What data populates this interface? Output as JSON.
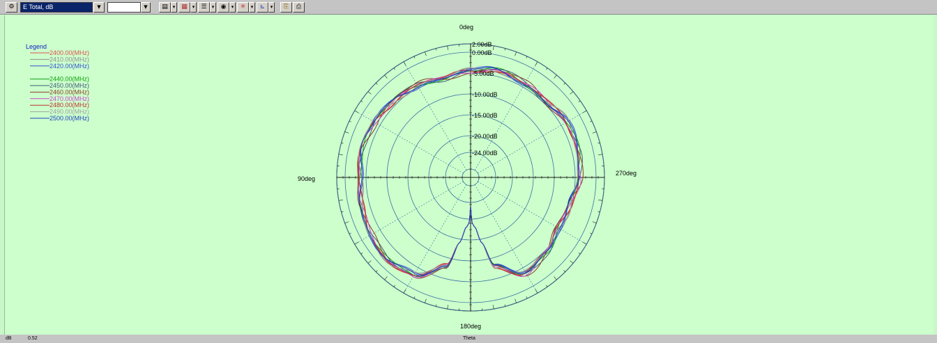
{
  "toolbar": {
    "quantity_select": "E Total, dB",
    "secondary_select": "",
    "icons": [
      "settings-icon",
      "marker-icon",
      "grid-icon",
      "list-icon",
      "polar-icon",
      "pattern-icon",
      "axis-icon",
      "copy-icon",
      "print-icon"
    ]
  },
  "status": {
    "unit": "dB",
    "value": "0.52",
    "axis_name": "Theta"
  },
  "chart_data": {
    "type": "polar-line",
    "title": "",
    "angle_labels": {
      "top": "0deg",
      "left": "90deg",
      "bottom": "180deg",
      "right": "270deg"
    },
    "radial_unit": "dB",
    "radial_range": [
      -28,
      2
    ],
    "ring_labels": [
      "2.00dB",
      "0.00dB",
      "-5.00dB",
      "-10.00dB",
      "-15.00dB",
      "-20.00dB",
      "-24.00dB"
    ],
    "ring_values": [
      2,
      0,
      -5,
      -10,
      -15,
      -20,
      -24
    ],
    "grid": true,
    "legend": {
      "title": "Legend",
      "position": "top-left",
      "items": [
        {
          "label": "2400.00(MHz)",
          "color": "#e05050"
        },
        {
          "label": "2410.00(MHz)",
          "color": "#909090"
        },
        {
          "label": "2420.00(MHz)",
          "color": "#3050d0"
        },
        {
          "label": "",
          "color": "#ffffff"
        },
        {
          "label": "2440.00(MHz)",
          "color": "#10a010"
        },
        {
          "label": "2450.00(MHz)",
          "color": "#405a78"
        },
        {
          "label": "2460.00(MHz)",
          "color": "#8a3a20"
        },
        {
          "label": "2470.00(MHz)",
          "color": "#d040d0"
        },
        {
          "label": "2480.00(MHz)",
          "color": "#c03030"
        },
        {
          "label": "2490.00(MHz)",
          "color": "#a0a0a0"
        },
        {
          "label": "2500.00(MHz)",
          "color": "#2040c0"
        }
      ]
    },
    "pattern": {
      "theta_deg": [
        0,
        15,
        30,
        45,
        60,
        75,
        90,
        105,
        120,
        135,
        150,
        165,
        170,
        175,
        178,
        180,
        182,
        185,
        190,
        195,
        210,
        225,
        240,
        255,
        270,
        285,
        300,
        315,
        330,
        345,
        360
      ],
      "gain_db": [
        -4.5,
        -5.5,
        -4.5,
        -4.0,
        -3.5,
        -3.0,
        -3.5,
        -3.0,
        -2.5,
        -2.0,
        -3.0,
        -8,
        -14,
        -18,
        -19,
        -23,
        -19,
        -18,
        -14,
        -8,
        -3.5,
        -4.5,
        -6.0,
        -5.5,
        -4.0,
        -3.5,
        -3.5,
        -4.5,
        -4.0,
        -3.5,
        -4.5
      ]
    }
  }
}
